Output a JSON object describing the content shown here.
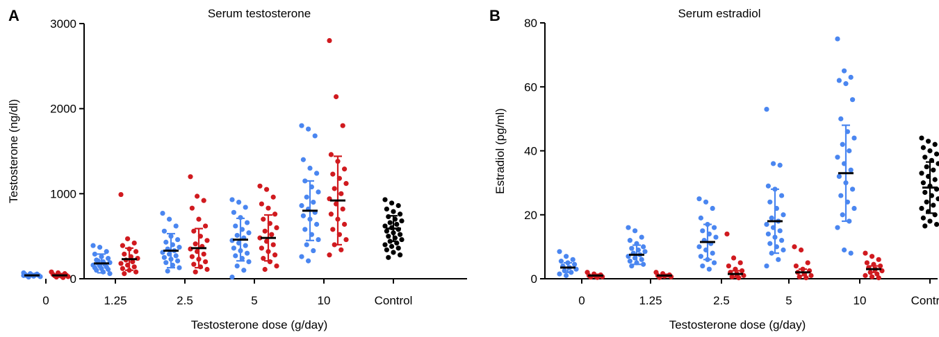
{
  "chart_data": [
    {
      "type": "scatter",
      "panel": "A",
      "title": "Serum testosterone",
      "xlabel": "Testosterone dose (g/day)",
      "ylabel": "Testosterone (ng/dl)",
      "categories": [
        "0",
        "1.25",
        "2.5",
        "5",
        "10",
        "Control"
      ],
      "ylim": [
        0,
        3000
      ],
      "yticks": [
        0,
        1000,
        2000,
        3000
      ],
      "series": [
        {
          "color": "#4a86f0",
          "groups": [
            {
              "category": "0",
              "mean": 40,
              "sd": 15,
              "points": [
                70,
                60,
                55,
                50,
                45,
                40,
                35,
                30,
                25,
                20,
                45,
                38
              ]
            },
            {
              "category": "1.25",
              "mean": 180,
              "sd": 110,
              "points": [
                390,
                370,
                320,
                290,
                260,
                240,
                220,
                200,
                190,
                180,
                170,
                160,
                150,
                140,
                130,
                120,
                110,
                100,
                80,
                60,
                210
              ]
            },
            {
              "category": "2.5",
              "mean": 330,
              "sd": 200,
              "points": [
                770,
                700,
                620,
                560,
                500,
                460,
                430,
                400,
                370,
                350,
                330,
                310,
                290,
                270,
                250,
                230,
                210,
                190,
                160,
                130,
                90
              ]
            },
            {
              "category": "5",
              "mean": 460,
              "sd": 250,
              "points": [
                930,
                900,
                840,
                780,
                720,
                660,
                620,
                580,
                540,
                510,
                480,
                450,
                420,
                390,
                360,
                330,
                300,
                270,
                240,
                200,
                150,
                100,
                20
              ]
            },
            {
              "category": "10",
              "mean": 800,
              "sd": 350,
              "points": [
                1800,
                1760,
                1680,
                1400,
                1300,
                1240,
                1150,
                1080,
                1020,
                960,
                900,
                860,
                820,
                780,
                740,
                700,
                640,
                580,
                520,
                460,
                400,
                330,
                260,
                210
              ]
            }
          ]
        },
        {
          "color": "#d01a1f",
          "groups": [
            {
              "category": "0",
              "mean": 40,
              "sd": 20,
              "points": [
                80,
                70,
                60,
                50,
                45,
                40,
                35,
                30,
                25,
                20,
                15
              ]
            },
            {
              "category": "1.25",
              "mean": 230,
              "sd": 130,
              "points": [
                990,
                470,
                420,
                390,
                350,
                320,
                290,
                260,
                240,
                220,
                200,
                180,
                160,
                140,
                120,
                100,
                80,
                60
              ]
            },
            {
              "category": "2.5",
              "mean": 360,
              "sd": 230,
              "points": [
                1200,
                970,
                920,
                830,
                700,
                620,
                560,
                500,
                450,
                410,
                380,
                350,
                320,
                290,
                260,
                230,
                200,
                170,
                140,
                110,
                80
              ]
            },
            {
              "category": "5",
              "mean": 480,
              "sd": 270,
              "points": [
                1090,
                1050,
                960,
                880,
                830,
                760,
                700,
                650,
                600,
                560,
                520,
                480,
                440,
                400,
                360,
                320,
                280,
                240,
                200,
                150,
                110
              ]
            },
            {
              "category": "10",
              "mean": 920,
              "sd": 520,
              "points": [
                2800,
                2140,
                1800,
                1460,
                1380,
                1290,
                1230,
                1180,
                1120,
                1060,
                1000,
                940,
                880,
                820,
                760,
                700,
                640,
                580,
                520,
                460,
                400,
                340,
                280
              ]
            }
          ]
        },
        {
          "color": "#000000",
          "groups": [
            {
              "category": "Control",
              "mean": 590,
              "sd": 150,
              "points": [
                930,
                890,
                860,
                820,
                790,
                760,
                730,
                700,
                680,
                660,
                640,
                620,
                600,
                580,
                560,
                540,
                520,
                500,
                480,
                460,
                440,
                420,
                400,
                380,
                360,
                340,
                310,
                280,
                250
              ]
            }
          ]
        }
      ]
    },
    {
      "type": "scatter",
      "panel": "B",
      "title": "Serum estradiol",
      "xlabel": "Testosterone dose (g/day)",
      "ylabel": "Estradiol (pg/ml)",
      "categories": [
        "0",
        "1.25",
        "2.5",
        "5",
        "10",
        "Control"
      ],
      "ylim": [
        0,
        80
      ],
      "yticks": [
        0,
        20,
        40,
        60,
        80
      ],
      "series": [
        {
          "color": "#4a86f0",
          "groups": [
            {
              "category": "0",
              "mean": 3.5,
              "sd": 1.5,
              "points": [
                8.5,
                7,
                6,
                5.5,
                5,
                4.5,
                4,
                3.5,
                3,
                2.5,
                2,
                1.5,
                1
              ]
            },
            {
              "category": "1.25",
              "mean": 7.5,
              "sd": 3,
              "points": [
                16,
                15,
                13,
                12,
                11,
                10,
                9.5,
                9,
                8.5,
                8,
                7.5,
                7,
                6.5,
                6,
                5.5,
                5,
                4.5,
                4
              ]
            },
            {
              "category": "2.5",
              "mean": 11.5,
              "sd": 5.5,
              "points": [
                25,
                24,
                22,
                19,
                17,
                16,
                15,
                14,
                13,
                12,
                11,
                10,
                9,
                8,
                7,
                6,
                5,
                4,
                3
              ]
            },
            {
              "category": "5",
              "mean": 18,
              "sd": 10,
              "points": [
                53,
                36,
                35.5,
                29,
                28,
                26,
                24,
                22,
                20,
                19,
                18,
                17,
                16,
                15,
                14,
                13,
                12,
                11,
                10,
                9,
                8,
                6,
                4
              ]
            },
            {
              "category": "10",
              "mean": 33,
              "sd": 15,
              "points": [
                75,
                65,
                63,
                62,
                61,
                56,
                50,
                46,
                44,
                42,
                40,
                38,
                36,
                34,
                32,
                30,
                28,
                26,
                24,
                22,
                20,
                18,
                16,
                9,
                8
              ]
            }
          ]
        },
        {
          "color": "#d01a1f",
          "groups": [
            {
              "category": "0",
              "mean": 1,
              "sd": 0.4,
              "points": [
                2,
                1.5,
                1.2,
                1,
                0.8,
                0.6,
                0.5,
                0.4
              ]
            },
            {
              "category": "1.25",
              "mean": 1,
              "sd": 0.4,
              "points": [
                2,
                1.6,
                1.2,
                1,
                0.8,
                0.6,
                0.4
              ]
            },
            {
              "category": "2.5",
              "mean": 1.5,
              "sd": 1,
              "points": [
                14,
                6.5,
                5,
                4,
                3,
                2.5,
                2,
                1.5,
                1,
                0.6,
                0.3
              ]
            },
            {
              "category": "5",
              "mean": 2,
              "sd": 1,
              "points": [
                10,
                9,
                5,
                4,
                3,
                2.5,
                2,
                1.5,
                1,
                0.6,
                0.3
              ]
            },
            {
              "category": "10",
              "mean": 3,
              "sd": 1,
              "points": [
                8,
                7,
                6,
                5,
                4.5,
                4,
                3.5,
                3,
                2.5,
                2,
                1.5,
                1,
                0.6,
                0.3
              ]
            }
          ]
        },
        {
          "color": "#000000",
          "groups": [
            {
              "category": "Control",
              "mean": 28.5,
              "sd": 8,
              "points": [
                44,
                43,
                42,
                41,
                40,
                39,
                38,
                37,
                36,
                35,
                34,
                33,
                32,
                31,
                30,
                29,
                28,
                27,
                26,
                25,
                24,
                23,
                22,
                21,
                20,
                19,
                18,
                17,
                16.5
              ]
            }
          ]
        }
      ]
    }
  ],
  "panels": {
    "a": {
      "letter": "A",
      "title": "Serum testosterone",
      "xlabel": "Testosterone dose (g/day)",
      "ylabel": "Testosterone (ng/dl)"
    },
    "b": {
      "letter": "B",
      "title": "Serum estradiol",
      "xlabel": "Testosterone dose (g/day)",
      "ylabel": "Estradiol (pg/ml)"
    }
  }
}
